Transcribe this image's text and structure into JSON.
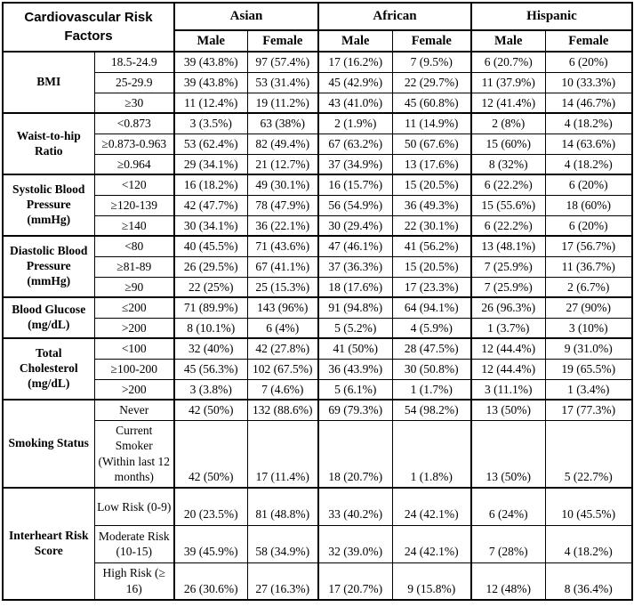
{
  "title": "Cardiovascular Risk Factors",
  "groups": [
    "Asian",
    "African",
    "Hispanic"
  ],
  "sex_headers": [
    "Male",
    "Female"
  ],
  "colors": {
    "text": "#000000",
    "background": "#ffffff",
    "border": "#000000"
  },
  "sections": [
    {
      "label": "BMI",
      "rows": [
        {
          "range": "18.5-24.9",
          "size": "std",
          "values": [
            "39 (43.8%)",
            "97 (57.4%)",
            "17 (16.2%)",
            "7 (9.5%)",
            "6 (20.7%)",
            "6 (20%)"
          ]
        },
        {
          "range": "25-29.9",
          "size": "std",
          "values": [
            "39 (43.8%)",
            "53 (31.4%)",
            "45 (42.9%)",
            "22 (29.7%)",
            "11 (37.9%)",
            "10 (33.3%)"
          ]
        },
        {
          "range": "≥30",
          "size": "std",
          "values": [
            "11 (12.4%)",
            "19 (11.2%)",
            "43 (41.0%)",
            "45 (60.8%)",
            "12 (41.4%)",
            "14 (46.7%)"
          ]
        }
      ]
    },
    {
      "label": "Waist-to-hip Ratio",
      "rows": [
        {
          "range": "<0.873",
          "size": "std",
          "values": [
            "3 (3.5%)",
            "63 (38%)",
            "2 (1.9%)",
            "11 (14.9%)",
            "2 (8%)",
            "4 (18.2%)"
          ]
        },
        {
          "range": "≥0.873-0.963",
          "size": "std",
          "values": [
            "53 (62.4%)",
            "82 (49.4%)",
            "67 (63.2%)",
            "50 (67.6%)",
            "15 (60%)",
            "14 (63.6%)"
          ]
        },
        {
          "range": "≥0.964",
          "size": "std",
          "values": [
            "29 (34.1%)",
            "21 (12.7%)",
            "37 (34.9%)",
            "13 (17.6%)",
            "8 (32%)",
            "4 (18.2%)"
          ]
        }
      ]
    },
    {
      "label": "Systolic Blood Pressure (mmHg)",
      "rows": [
        {
          "range": "<120",
          "size": "std",
          "values": [
            "16 (18.2%)",
            "49 (30.1%)",
            "16 (15.7%)",
            "15 (20.5%)",
            "6 (22.2%)",
            "6 (20%)"
          ]
        },
        {
          "range": "≥120-139",
          "size": "std",
          "values": [
            "42 (47.7%)",
            "78 (47.9%)",
            "56 (54.9%)",
            "36 (49.3%)",
            "15 (55.6%)",
            "18 (60%)"
          ]
        },
        {
          "range": "≥140",
          "size": "std",
          "values": [
            "30 (34.1%)",
            "36 (22.1%)",
            "30 (29.4%)",
            "22 (30.1%)",
            "6 (22.2%)",
            "6 (20%)"
          ]
        }
      ]
    },
    {
      "label": "Diastolic Blood Pressure (mmHg)",
      "rows": [
        {
          "range": "<80",
          "size": "std",
          "values": [
            "40 (45.5%)",
            "71 (43.6%)",
            "47 (46.1%)",
            "41 (56.2%)",
            "13 (48.1%)",
            "17 (56.7%)"
          ]
        },
        {
          "range": "≥81-89",
          "size": "std",
          "values": [
            "26 (29.5%)",
            "67 (41.1%)",
            "37 (36.3%)",
            "15 (20.5%)",
            "7 (25.9%)",
            "11 (36.7%)"
          ]
        },
        {
          "range": "≥90",
          "size": "std",
          "values": [
            "22 (25%)",
            "25 (15.3%)",
            "18 (17.6%)",
            "17 (23.3%)",
            "7 (25.9%)",
            "2 (6.7%)"
          ]
        }
      ]
    },
    {
      "label": "Blood Glucose (mg/dL)",
      "rows": [
        {
          "range": "≤200",
          "size": "std",
          "values": [
            "71 (89.9%)",
            "143 (96%)",
            "91 (94.8%)",
            "64 (94.1%)",
            "26 (96.3%)",
            "27 (90%)"
          ]
        },
        {
          "range": ">200",
          "size": "std",
          "values": [
            "8 (10.1%)",
            "6 (4%)",
            "5 (5.2%)",
            "4 (5.9%)",
            "1 (3.7%)",
            "3 (10%)"
          ]
        }
      ]
    },
    {
      "label": "Total Cholesterol (mg/dL)",
      "rows": [
        {
          "range": "<100",
          "size": "std",
          "values": [
            "32 (40%)",
            "42 (27.8%)",
            "41 (50%)",
            "28 (47.5%)",
            "12 (44.4%)",
            "9 (31.0%)"
          ]
        },
        {
          "range": "≥100-200",
          "size": "std",
          "values": [
            "45 (56.3%)",
            "102 (67.5%)",
            "36 (43.9%)",
            "30 (50.8%)",
            "12 (44.4%)",
            "19 (65.5%)"
          ]
        },
        {
          "range": ">200",
          "size": "std",
          "values": [
            "3 (3.8%)",
            "7 (4.6%)",
            "5 (6.1%)",
            "1 (1.7%)",
            "3 (11.1%)",
            "1 (3.4%)"
          ]
        }
      ]
    },
    {
      "label": "Smoking Status",
      "rows": [
        {
          "range": "Never",
          "size": "std",
          "values": [
            "42 (50%)",
            "132 (88.6%)",
            "69 (79.3%)",
            "54 (98.2%)",
            "13 (50%)",
            "17 (77.3%)"
          ]
        },
        {
          "range": "Current Smoker (Within last 12 months)",
          "size": "smoker",
          "values": [
            "42 (50%)",
            "17 (11.4%)",
            "18 (20.7%)",
            "1 (1.8%)",
            "13 (50%)",
            "5 (22.7%)"
          ]
        }
      ]
    },
    {
      "label": "Interheart Risk Score",
      "rows": [
        {
          "range": "Low Risk (0-9)",
          "size": "risk",
          "values": [
            "20 (23.5%)",
            "81 (48.8%)",
            "33 (40.2%)",
            "24 (42.1%)",
            "6 (24%)",
            "10 (45.5%)"
          ]
        },
        {
          "range": "Moderate Risk (10-15)",
          "size": "risk",
          "values": [
            "39 (45.9%)",
            "58 (34.9%)",
            "32 (39.0%)",
            "24 (42.1%)",
            "7 (28%)",
            "4 (18.2%)"
          ]
        },
        {
          "range": "High Risk (≥ 16)",
          "size": "risk",
          "values": [
            "26 (30.6%)",
            "27 (16.3%)",
            "17 (20.7%)",
            "9 (15.8%)",
            "12 (48%)",
            "8 (36.4%)"
          ]
        }
      ]
    }
  ]
}
